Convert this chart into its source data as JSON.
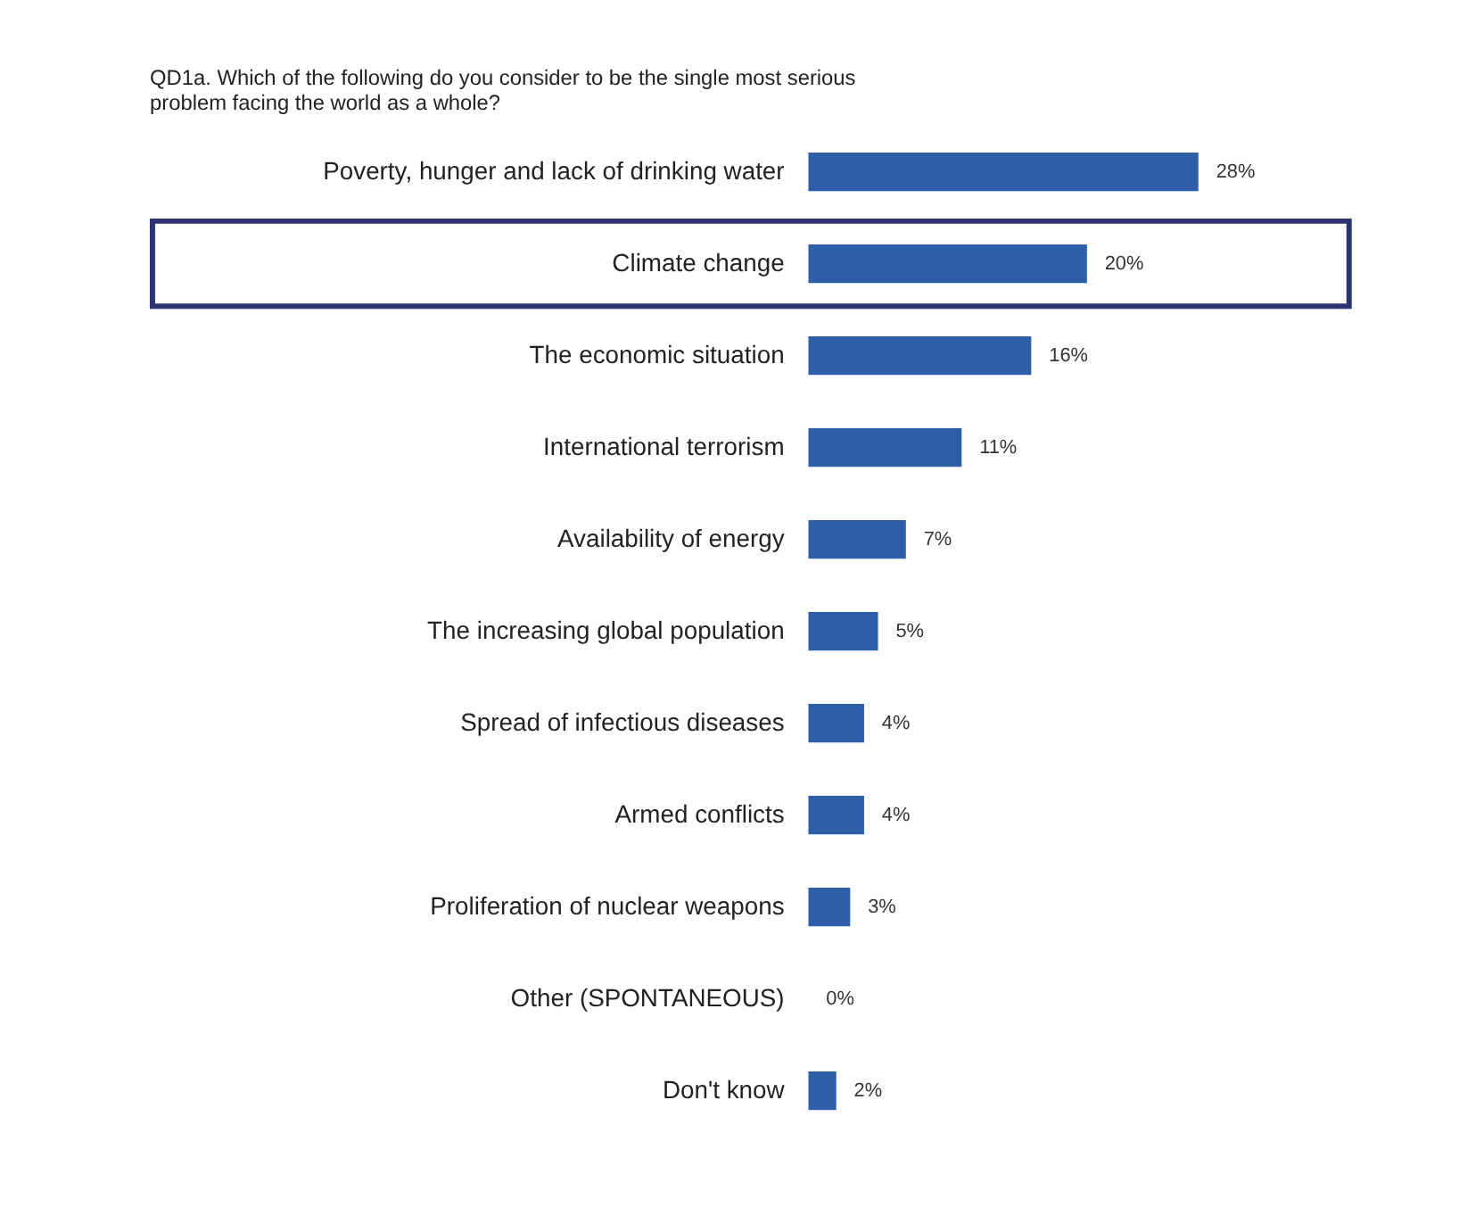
{
  "chart_data": {
    "type": "bar",
    "orientation": "horizontal",
    "title": "QD1a. Which of the following do you consider to be the single most serious\nproblem facing the world as a whole?",
    "categories": [
      "Poverty, hunger and lack of drinking water",
      "Climate change",
      "The economic situation",
      "International terrorism",
      "Availability of energy",
      "The increasing global population",
      "Spread of infectious diseases",
      "Armed conflicts",
      "Proliferation of nuclear weapons",
      "Other (SPONTANEOUS)",
      "Don't know"
    ],
    "values": [
      28,
      20,
      16,
      11,
      7,
      5,
      4,
      4,
      3,
      0,
      2
    ],
    "value_labels": [
      "28%",
      "20%",
      "16%",
      "11%",
      "7%",
      "5%",
      "4%",
      "4%",
      "3%",
      "0%",
      "2%"
    ],
    "color": "#2f5ea8"
  }
}
